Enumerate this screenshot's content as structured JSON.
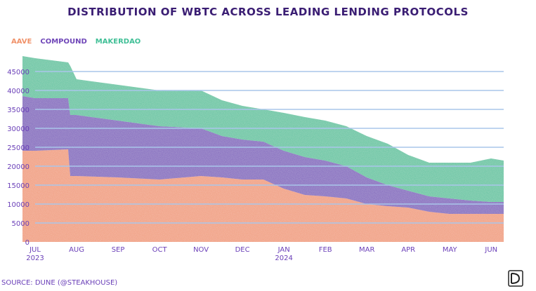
{
  "chart_data": {
    "type": "area",
    "stacked": true,
    "title": "DISTRIBUTION OF WBTC ACROSS LEADING LENDING PROTOCOLS",
    "xlabel": "",
    "ylabel": "",
    "ylim": [
      0,
      50000
    ],
    "yticks": [
      0,
      5000,
      10000,
      15000,
      20000,
      25000,
      30000,
      35000,
      40000,
      45000
    ],
    "xlim": [
      0,
      11.3
    ],
    "x_ticks": [
      {
        "pos": 0.0,
        "label": "JUL",
        "sublabel": "2023"
      },
      {
        "pos": 1.0,
        "label": "AUG",
        "sublabel": ""
      },
      {
        "pos": 2.0,
        "label": "SEP",
        "sublabel": ""
      },
      {
        "pos": 3.0,
        "label": "OCT",
        "sublabel": ""
      },
      {
        "pos": 4.0,
        "label": "NOV",
        "sublabel": ""
      },
      {
        "pos": 5.0,
        "label": "DEC",
        "sublabel": ""
      },
      {
        "pos": 6.0,
        "label": "JAN",
        "sublabel": "2024"
      },
      {
        "pos": 7.0,
        "label": "FEB",
        "sublabel": ""
      },
      {
        "pos": 8.0,
        "label": "MAR",
        "sublabel": ""
      },
      {
        "pos": 9.0,
        "label": "APR",
        "sublabel": ""
      },
      {
        "pos": 10.0,
        "label": "MAY",
        "sublabel": ""
      },
      {
        "pos": 11.0,
        "label": "JUN",
        "sublabel": ""
      }
    ],
    "grid": true,
    "legend_position": "top-left",
    "x": [
      -0.3,
      0.0,
      0.8,
      0.85,
      1.0,
      2.0,
      3.0,
      4.0,
      4.5,
      5.0,
      5.5,
      6.0,
      6.5,
      7.0,
      7.5,
      8.0,
      8.5,
      9.0,
      9.5,
      10.0,
      10.5,
      11.0,
      11.3
    ],
    "series": [
      {
        "name": "AAVE",
        "color": "#f0926a",
        "values": [
          24000,
          24000,
          24500,
          17500,
          17500,
          17000,
          16500,
          17500,
          17000,
          16500,
          16500,
          14000,
          12500,
          12000,
          11500,
          10000,
          9500,
          9000,
          8000,
          7500,
          7500,
          7500,
          7500
        ]
      },
      {
        "name": "COMPOUND",
        "color": "#6f46b8",
        "values": [
          14500,
          14000,
          13500,
          16000,
          16000,
          15000,
          14000,
          12500,
          11000,
          10500,
          10000,
          10000,
          10000,
          9500,
          8500,
          7000,
          5500,
          4500,
          4000,
          4000,
          3500,
          3000,
          3000
        ]
      },
      {
        "name": "MAKERDAO",
        "color": "#3fbf96",
        "values": [
          10500,
          10500,
          9500,
          13000,
          9500,
          9500,
          9500,
          10000,
          9500,
          9000,
          8500,
          10000,
          10500,
          10500,
          10500,
          11000,
          11000,
          9500,
          9000,
          9500,
          10000,
          11500,
          11000
        ]
      }
    ]
  },
  "source": "SOURCE: DUNE (@STEAKHOUSE)"
}
